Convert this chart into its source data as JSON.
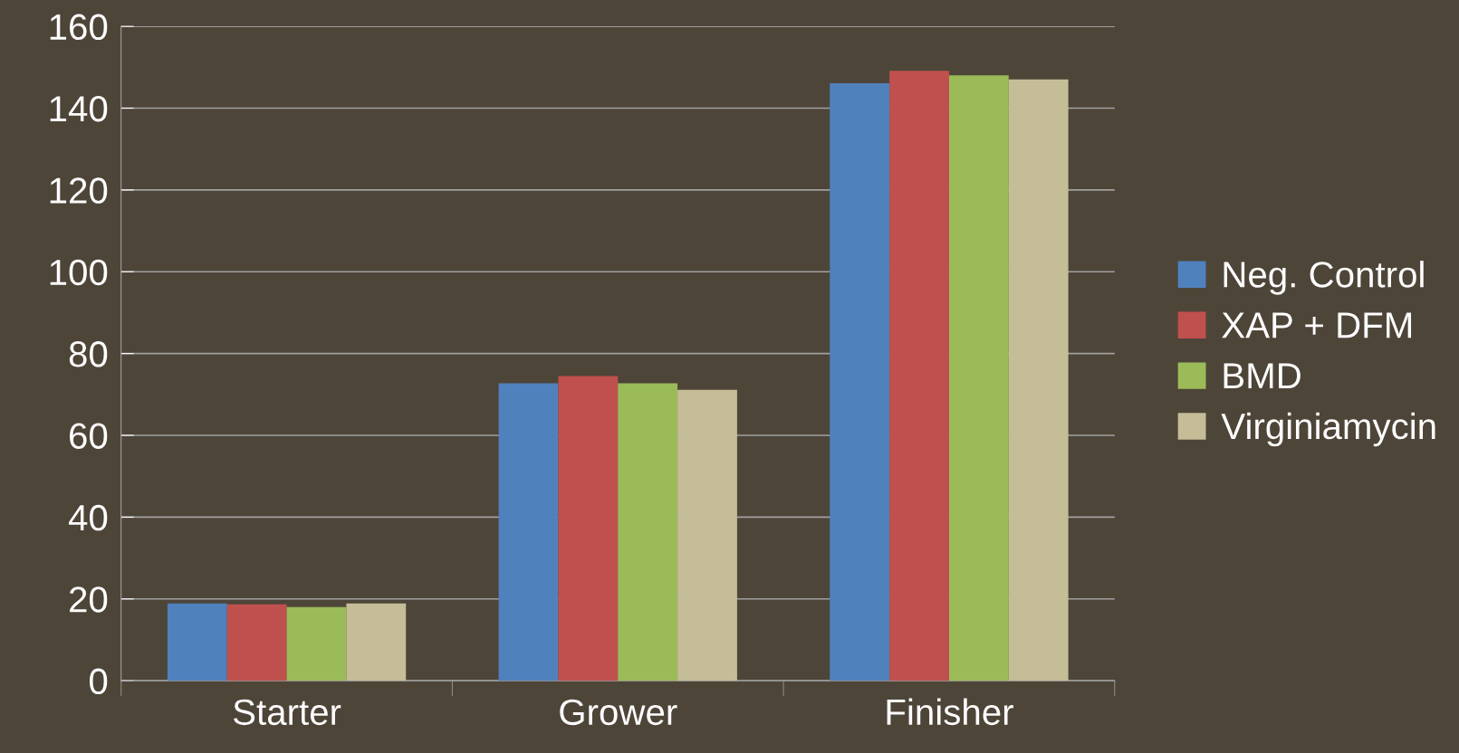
{
  "chart_data": {
    "type": "bar",
    "categories": [
      "Starter",
      "Grower",
      "Finisher"
    ],
    "series": [
      {
        "name": "Neg. Control",
        "color": "#4f81bd",
        "values": [
          18.9,
          72.7,
          146.1
        ]
      },
      {
        "name": "XAP + DFM",
        "color": "#c0504d",
        "values": [
          18.7,
          74.5,
          149.1
        ]
      },
      {
        "name": "BMD",
        "color": "#9bbb59",
        "values": [
          18.0,
          72.7,
          148.0
        ]
      },
      {
        "name": "Virginiamycin",
        "color": "#c4bd97",
        "values": [
          18.9,
          71.1,
          147.0
        ]
      }
    ],
    "ylim": [
      0,
      160
    ],
    "yticks": [
      0,
      20,
      40,
      60,
      80,
      100,
      120,
      140,
      160
    ],
    "grid": "y",
    "legend": "right"
  }
}
